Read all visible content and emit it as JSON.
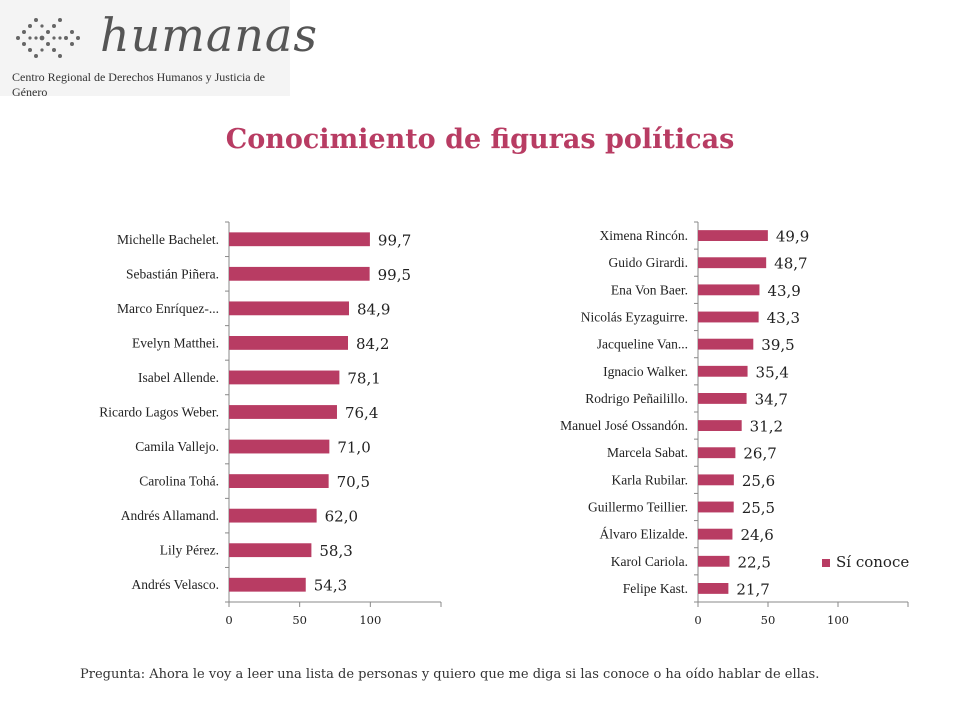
{
  "logo": {
    "word": "humanas",
    "subtitle": "Centro Regional de Derechos Humanos y Justicia de Género"
  },
  "title": "Conocimiento de figuras políticas",
  "legend": {
    "label": "Sí conoce",
    "color": "#b83c63"
  },
  "footnote": "Pregunta: Ahora le voy a leer una lista de personas y quiero que me diga si las conoce o ha oído hablar de ellas.",
  "chart_data": [
    {
      "type": "bar",
      "orientation": "horizontal",
      "categories": [
        "Michelle Bachelet.",
        "Sebastián Piñera.",
        "Marco Enríquez-...",
        "Evelyn Matthei.",
        "Isabel Allende.",
        "Ricardo Lagos Weber.",
        "Camila Vallejo.",
        "Carolina Tohá.",
        "Andrés Allamand.",
        "Lily Pérez.",
        "Andrés Velasco."
      ],
      "series": [
        {
          "name": "Sí conoce",
          "values": [
            99.7,
            99.5,
            84.9,
            84.2,
            78.1,
            76.4,
            71.0,
            70.5,
            62.0,
            58.3,
            54.3
          ]
        }
      ],
      "value_labels": [
        "99,7",
        "99,5",
        "84,9",
        "84,2",
        "78,1",
        "76,4",
        "71,0",
        "70,5",
        "62,0",
        "58,3",
        "54,3"
      ],
      "xlim": [
        0,
        150
      ],
      "xticks": [
        "0",
        "50",
        "100"
      ],
      "color": "#b83c63"
    },
    {
      "type": "bar",
      "orientation": "horizontal",
      "categories": [
        "Ximena Rincón.",
        "Guido Girardi.",
        "Ena Von Baer.",
        "Nicolás Eyzaguirre.",
        "Jacqueline Van...",
        "Ignacio Walker.",
        "Rodrigo Peñailillo.",
        "Manuel José Ossandón.",
        "Marcela Sabat.",
        "Karla Rubilar.",
        "Guillermo Teillier.",
        "Álvaro Elizalde.",
        "Karol Cariola.",
        "Felipe Kast."
      ],
      "series": [
        {
          "name": "Sí conoce",
          "values": [
            49.9,
            48.7,
            43.9,
            43.3,
            39.5,
            35.4,
            34.7,
            31.2,
            26.7,
            25.6,
            25.5,
            24.6,
            22.5,
            21.7
          ]
        }
      ],
      "value_labels": [
        "49,9",
        "48,7",
        "43,9",
        "43,3",
        "39,5",
        "35,4",
        "34,7",
        "31,2",
        "26,7",
        "25,6",
        "25,5",
        "24,6",
        "22,5",
        "21,7"
      ],
      "xlim": [
        0,
        150
      ],
      "xticks": [
        "0",
        "50",
        "100"
      ],
      "color": "#b83c63"
    }
  ]
}
